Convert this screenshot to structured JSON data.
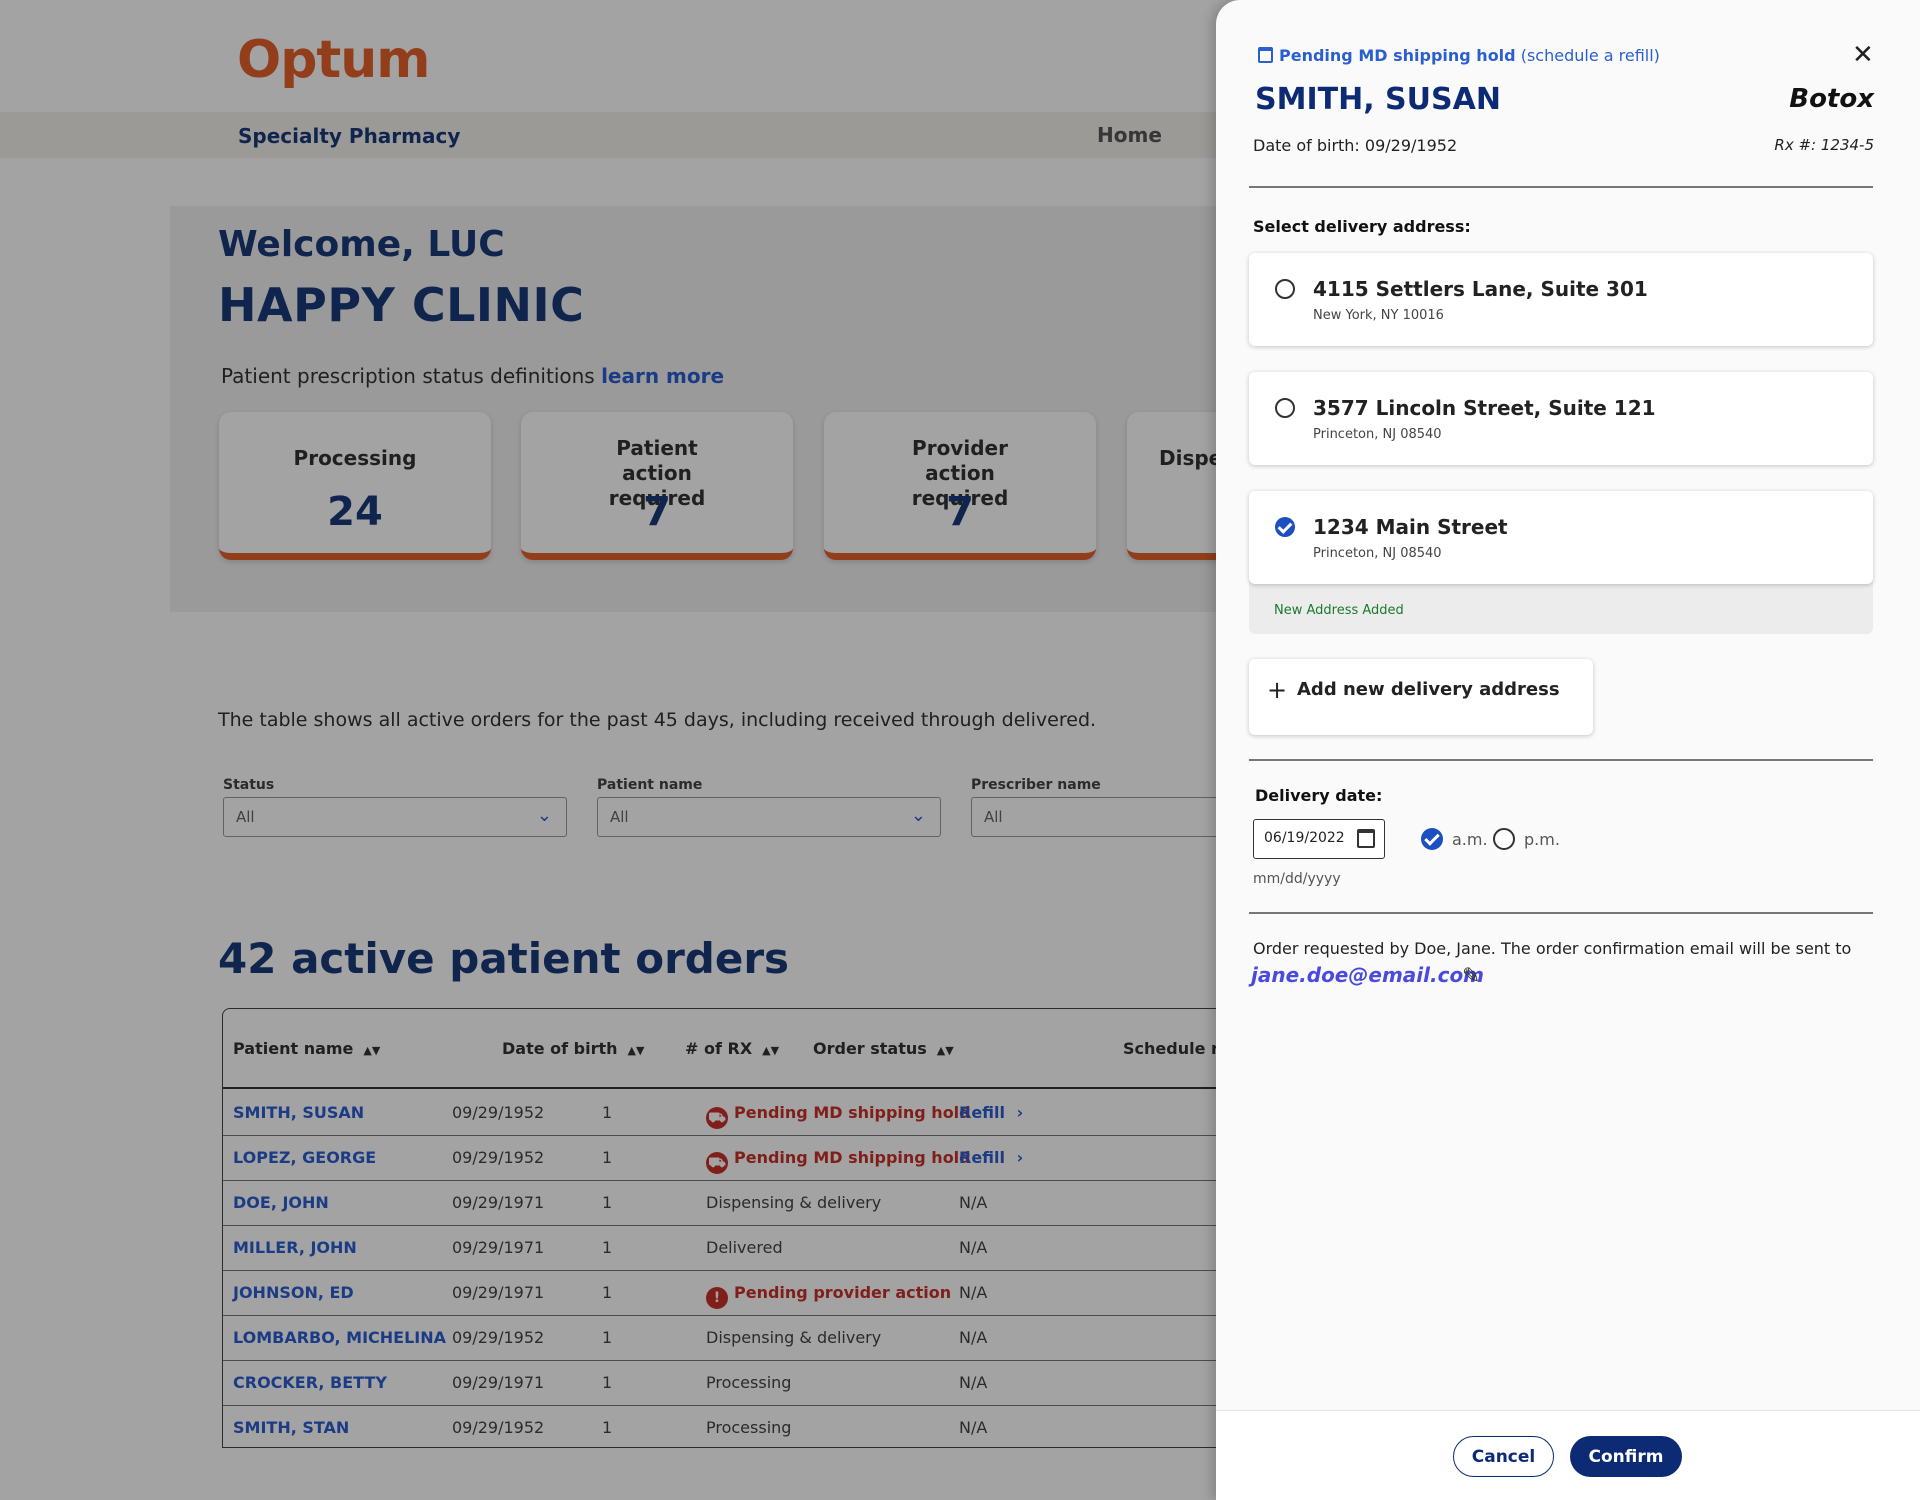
{
  "brand": {
    "logo_text": "Optum",
    "color": "#e4622b"
  },
  "navbar": {
    "title": "Specialty Pharmacy",
    "home": "Home"
  },
  "welcome": {
    "greeting": "Welcome, LUC",
    "clinic": "HAPPY CLINIC",
    "defs_text": "Patient prescription status definitions",
    "defs_link": "learn more"
  },
  "stats": [
    {
      "label": "Processing",
      "value": "24"
    },
    {
      "label": "Patient action required",
      "value": "7"
    },
    {
      "label": "Provider action required",
      "value": "7"
    },
    {
      "label": "Dispe",
      "value": ""
    }
  ],
  "table_description": "The table shows all active orders for the past 45 days, including received through delivered.",
  "filters": [
    {
      "label": "Status",
      "value": "All"
    },
    {
      "label": "Patient name",
      "value": "All"
    },
    {
      "label": "Prescriber name",
      "value": "All"
    }
  ],
  "orders_heading": "42 active patient orders",
  "table": {
    "columns": [
      "Patient name",
      "Date of birth",
      "# of RX",
      "Order status",
      "Schedule ref"
    ],
    "rows": [
      {
        "name": "SMITH, SUSAN",
        "dob": "09/29/1952",
        "rx": "1",
        "status": "Pending MD shipping hold",
        "status_type": "shipping",
        "schedule": "Refill"
      },
      {
        "name": "LOPEZ, GEORGE",
        "dob": "09/29/1952",
        "rx": "1",
        "status": "Pending MD shipping hold",
        "status_type": "shipping",
        "schedule": "Refill"
      },
      {
        "name": "DOE, JOHN",
        "dob": "09/29/1971",
        "rx": "1",
        "status": "Dispensing & delivery",
        "status_type": "normal",
        "schedule": "N/A"
      },
      {
        "name": "MILLER, JOHN",
        "dob": "09/29/1971",
        "rx": "1",
        "status": "Delivered",
        "status_type": "normal",
        "schedule": "N/A"
      },
      {
        "name": "JOHNSON, ED",
        "dob": "09/29/1971",
        "rx": "1",
        "status": "Pending provider action",
        "status_type": "alert",
        "schedule": "N/A"
      },
      {
        "name": "LOMBARBO, MICHELINA",
        "dob": "09/29/1952",
        "rx": "1",
        "status": "Dispensing & delivery",
        "status_type": "normal",
        "schedule": "N/A"
      },
      {
        "name": "CROCKER, BETTY",
        "dob": "09/29/1971",
        "rx": "1",
        "status": "Processing",
        "status_type": "normal",
        "schedule": "N/A"
      },
      {
        "name": "SMITH, STAN",
        "dob": "09/29/1952",
        "rx": "1",
        "status": "Processing",
        "status_type": "normal",
        "schedule": "N/A"
      }
    ]
  },
  "panel": {
    "status_label": "Pending MD shipping hold",
    "status_link": "(schedule a refill)",
    "close_icon": "close-icon",
    "patient_name": "SMITH, SUSAN",
    "drug": "Botox",
    "dob_text": "Date of birth: 09/29/1952",
    "rx_text": "Rx #: 1234-5",
    "address_label": "Select delivery address:",
    "addresses": [
      {
        "line1": "4115 Settlers Lane, Suite 301",
        "line2": "New York, NY 10016",
        "selected": false
      },
      {
        "line1": "3577 Lincoln Street, Suite 121",
        "line2": "Princeton, NJ 08540",
        "selected": false
      },
      {
        "line1": "1234 Main Street",
        "line2": "Princeton, NJ 08540",
        "selected": true
      }
    ],
    "new_address_note": "New Address Added",
    "add_address_label": "Add new delivery address",
    "delivery_date_label": "Delivery date:",
    "delivery_date_value": "06/19/2022",
    "delivery_date_hint": "mm/dd/yyyy",
    "am_label": "a.m.",
    "pm_label": "p.m.",
    "am_selected": true,
    "request_text": "Order requested by Doe, Jane. The order confirmation email will be sent to",
    "email": "jane.doe@email.com",
    "cancel_label": "Cancel",
    "confirm_label": "Confirm"
  },
  "colors": {
    "brand_orange": "#e4622b",
    "navy": "#0d2a75",
    "link_blue": "#2b5fd0",
    "alert_red": "#c8312a",
    "success_green": "#1a7a2a"
  }
}
